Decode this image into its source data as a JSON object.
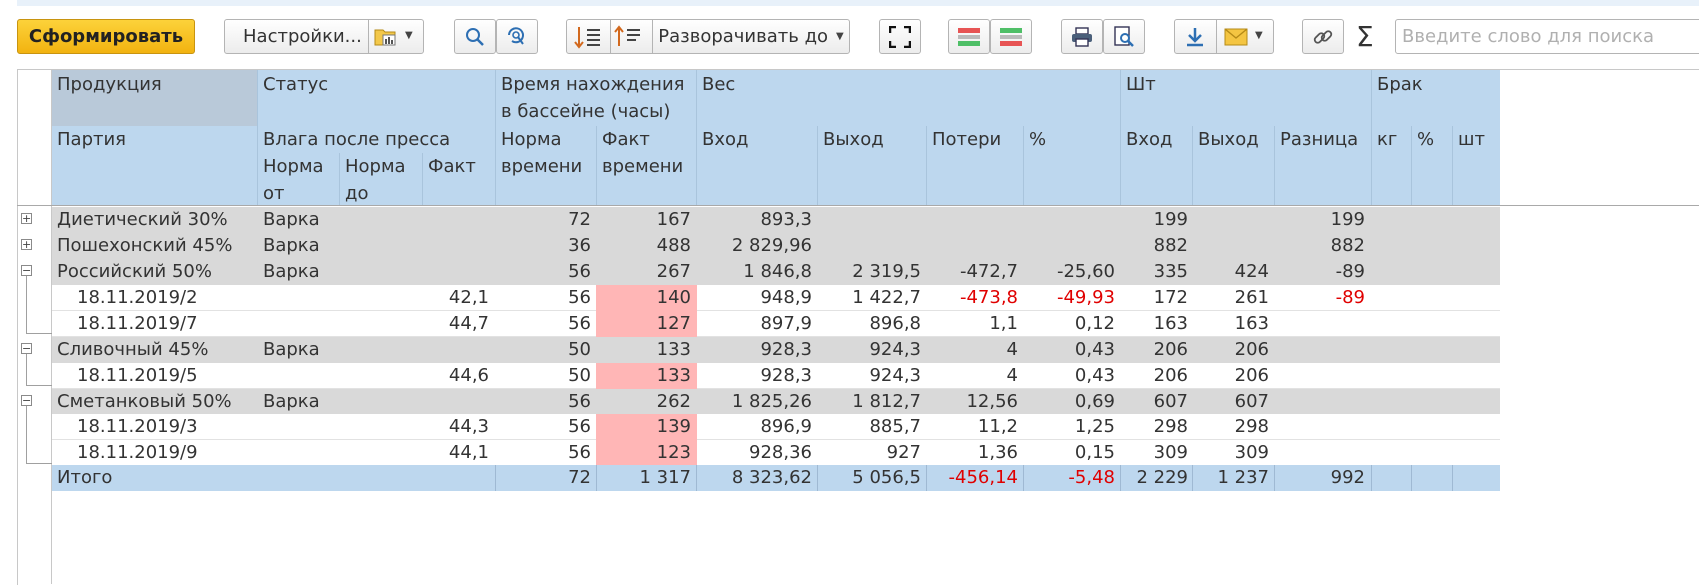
{
  "toolbar": {
    "generate_label": "Сформировать",
    "settings_label": "Настройки...",
    "expand_label": "Разворачивать до",
    "search_placeholder": "Введите слово для поиска",
    "sigma": "Σ"
  },
  "colors": {
    "header_bg": "#bdd7ee",
    "group_bg": "#d9d9d9",
    "highlight_bg": "#ffb6b6",
    "negative_text": "#e00000",
    "primary_button": "#f7c223"
  },
  "header": {
    "product": "Продукция",
    "status": "Статус",
    "time_in_pool_1": "Время нахождения",
    "time_in_pool_2": "в бассейне (часы)",
    "weight": "Вес",
    "pcs": "Шт",
    "defect": "Брак",
    "batch": "Партия",
    "moisture": "Влага после пресса",
    "norm_time_1": "Норма",
    "norm_time_2": "времени",
    "fact_time_1": "Факт",
    "fact_time_2": "времени",
    "w_in": "Вход",
    "w_out": "Выход",
    "w_loss": "Потери",
    "w_pct": "%",
    "p_in": "Вход",
    "p_out": "Выход",
    "p_diff": "Разница",
    "d_kg": "кг",
    "d_pct": "%",
    "d_pcs": "шт",
    "norm_from_1": "Норма",
    "norm_from_2": "от",
    "norm_to_1": "Норма",
    "norm_to_2": "до",
    "fact": "Факт"
  },
  "rows": [
    {
      "name": "Диетический 30%",
      "status": "Варка",
      "fact": "",
      "norm_time": "72",
      "fact_time": "167",
      "w_in": "893,3",
      "w_out": "",
      "w_loss": "",
      "w_pct": "",
      "p_in": "199",
      "p_out": "",
      "p_diff": "199"
    },
    {
      "name": "Пошехонский 45%",
      "status": "Варка",
      "fact": "",
      "norm_time": "36",
      "fact_time": "488",
      "w_in": "2 829,96",
      "w_out": "",
      "w_loss": "",
      "w_pct": "",
      "p_in": "882",
      "p_out": "",
      "p_diff": "882"
    },
    {
      "name": "Российский 50%",
      "status": "Варка",
      "fact": "",
      "norm_time": "56",
      "fact_time": "267",
      "w_in": "1 846,8",
      "w_out": "2 319,5",
      "w_loss": "-472,7",
      "w_pct": "-25,60",
      "p_in": "335",
      "p_out": "424",
      "p_diff": "-89"
    },
    {
      "name": "18.11.2019/2",
      "status": "",
      "fact": "42,1",
      "norm_time": "56",
      "fact_time": "140",
      "w_in": "948,9",
      "w_out": "1 422,7",
      "w_loss": "-473,8",
      "w_pct": "-49,93",
      "p_in": "172",
      "p_out": "261",
      "p_diff": "-89"
    },
    {
      "name": "18.11.2019/7",
      "status": "",
      "fact": "44,7",
      "norm_time": "56",
      "fact_time": "127",
      "w_in": "897,9",
      "w_out": "896,8",
      "w_loss": "1,1",
      "w_pct": "0,12",
      "p_in": "163",
      "p_out": "163",
      "p_diff": ""
    },
    {
      "name": "Сливочный 45%",
      "status": "Варка",
      "fact": "",
      "norm_time": "50",
      "fact_time": "133",
      "w_in": "928,3",
      "w_out": "924,3",
      "w_loss": "4",
      "w_pct": "0,43",
      "p_in": "206",
      "p_out": "206",
      "p_diff": ""
    },
    {
      "name": "18.11.2019/5",
      "status": "",
      "fact": "44,6",
      "norm_time": "50",
      "fact_time": "133",
      "w_in": "928,3",
      "w_out": "924,3",
      "w_loss": "4",
      "w_pct": "0,43",
      "p_in": "206",
      "p_out": "206",
      "p_diff": ""
    },
    {
      "name": "Сметанковый 50%",
      "status": "Варка",
      "fact": "",
      "norm_time": "56",
      "fact_time": "262",
      "w_in": "1 825,26",
      "w_out": "1 812,7",
      "w_loss": "12,56",
      "w_pct": "0,69",
      "p_in": "607",
      "p_out": "607",
      "p_diff": ""
    },
    {
      "name": "18.11.2019/3",
      "status": "",
      "fact": "44,3",
      "norm_time": "56",
      "fact_time": "139",
      "w_in": "896,9",
      "w_out": "885,7",
      "w_loss": "11,2",
      "w_pct": "1,25",
      "p_in": "298",
      "p_out": "298",
      "p_diff": ""
    },
    {
      "name": "18.11.2019/9",
      "status": "",
      "fact": "44,1",
      "norm_time": "56",
      "fact_time": "123",
      "w_in": "928,36",
      "w_out": "927",
      "w_loss": "1,36",
      "w_pct": "0,15",
      "p_in": "309",
      "p_out": "309",
      "p_diff": ""
    }
  ],
  "total": {
    "name": "Итого",
    "norm_time": "72",
    "fact_time": "1 317",
    "w_in": "8 323,62",
    "w_out": "5 056,5",
    "w_loss": "-456,14",
    "w_pct": "-5,48",
    "p_in": "2 229",
    "p_out": "1 237",
    "p_diff": "992"
  }
}
